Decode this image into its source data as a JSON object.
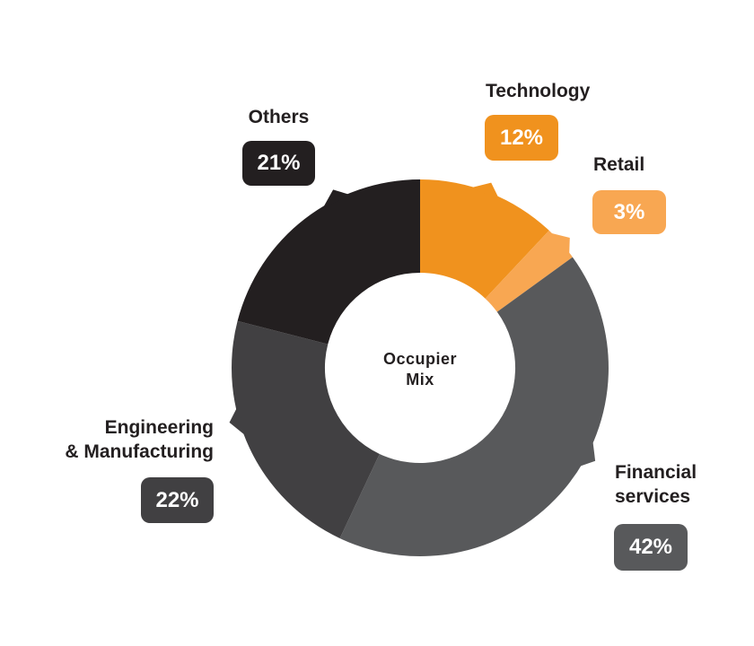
{
  "page": {
    "background_color": "#FFFFFF"
  },
  "chart_data": {
    "type": "pie",
    "variant": "donut",
    "title": "Occupier Mix",
    "center_label_lines": [
      "Occupier",
      "Mix"
    ],
    "start_angle_deg": 0,
    "direction": "clockwise",
    "hole_ratio": 0.505,
    "legend_position": "around-chart",
    "text_color": "#231F20",
    "badge_text_color": "#FFFFFF",
    "segments": [
      {
        "name": "Technology",
        "name_lines": [
          "Technology"
        ],
        "value_pct": 12,
        "value_label": "12%",
        "color": "#F0921E",
        "pointer_angle_deg": 20
      },
      {
        "name": "Retail",
        "name_lines": [
          "Retail"
        ],
        "value_pct": 3,
        "value_label": "3%",
        "color": "#F8A752",
        "pointer_angle_deg": 48
      },
      {
        "name": "Financial services",
        "name_lines": [
          "Financial",
          "services"
        ],
        "value_pct": 42,
        "value_label": "42%",
        "color": "#58595B",
        "pointer_angle_deg": 117
      },
      {
        "name": "Engineering & Manufacturing",
        "name_lines": [
          "Engineering",
          "& Manufacturing"
        ],
        "value_pct": 22,
        "value_label": "22%",
        "color": "#414042",
        "pointer_angle_deg": 253
      },
      {
        "name": "Others",
        "name_lines": [
          "Others"
        ],
        "value_pct": 21,
        "value_label": "21%",
        "color": "#231F20",
        "pointer_angle_deg": 333
      }
    ]
  }
}
